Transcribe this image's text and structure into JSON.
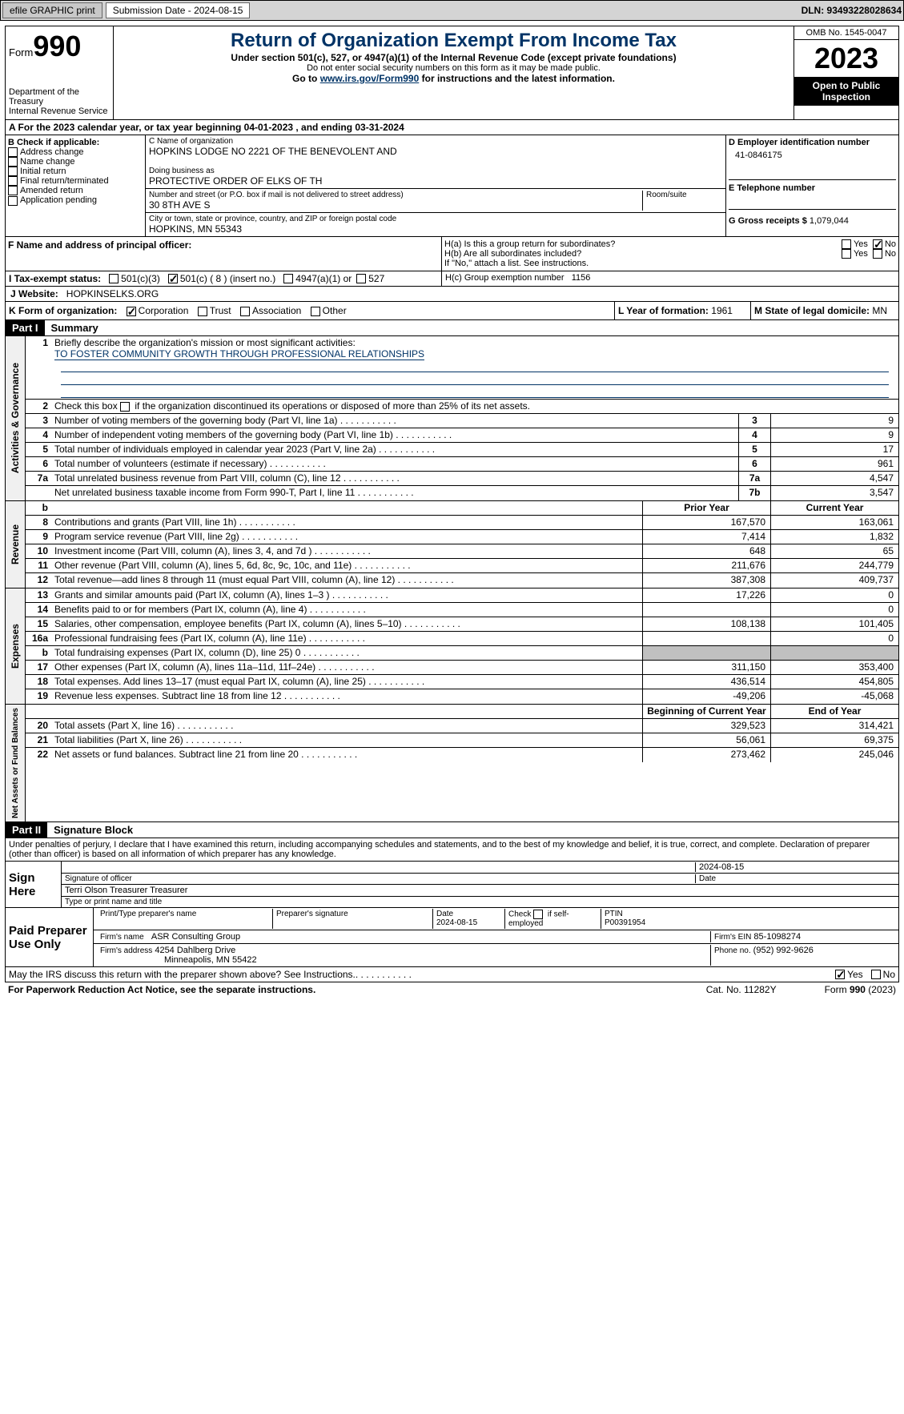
{
  "toolbar": {
    "efile": "efile GRAPHIC print",
    "submission": "Submission Date - 2024-08-15",
    "dln": "DLN: 93493228028634"
  },
  "header": {
    "form": "Form",
    "form_num": "990",
    "dept": "Department of the Treasury",
    "irs": "Internal Revenue Service",
    "title": "Return of Organization Exempt From Income Tax",
    "subtitle": "Under section 501(c), 527, or 4947(a)(1) of the Internal Revenue Code (except private foundations)",
    "ssn_warn": "Do not enter social security numbers on this form as it may be made public.",
    "goto": "Go to ",
    "url": "www.irs.gov/Form990",
    "goto2": " for instructions and the latest information.",
    "omb": "OMB No. 1545-0047",
    "year": "2023",
    "public": "Open to Public Inspection"
  },
  "period": "A For the 2023 calendar year, or tax year beginning 04-01-2023    , and ending 03-31-2024",
  "section_b": {
    "label": "B Check if applicable:",
    "items": [
      "Address change",
      "Name change",
      "Initial return",
      "Final return/terminated",
      "Amended return",
      "Application pending"
    ]
  },
  "section_c": {
    "name_label": "C Name of organization",
    "name": "HOPKINS LODGE NO 2221 OF THE BENEVOLENT AND",
    "dba_label": "Doing business as",
    "dba": "PROTECTIVE ORDER OF ELKS OF TH",
    "addr_label": "Number and street (or P.O. box if mail is not delivered to street address)",
    "room_label": "Room/suite",
    "addr": "30 8TH AVE S",
    "city_label": "City or town, state or province, country, and ZIP or foreign postal code",
    "city": "HOPKINS, MN  55343"
  },
  "section_d": {
    "label": "D Employer identification number",
    "ein": "41-0846175"
  },
  "section_e": {
    "label": "E Telephone number"
  },
  "section_g": {
    "label": "G Gross receipts $",
    "val": "1,079,044"
  },
  "section_f": {
    "label": "F  Name and address of principal officer:"
  },
  "section_h": {
    "ha": "H(a)  Is this a group return for subordinates?",
    "hb": "H(b)  Are all subordinates included?",
    "hb_note": "If \"No,\" attach a list. See instructions.",
    "hc": "H(c)  Group exemption number ",
    "hc_val": "1156",
    "yes": "Yes",
    "no": "No"
  },
  "section_i": {
    "label": "I  Tax-exempt status:",
    "opts": [
      "501(c)(3)",
      "501(c) ( 8 ) (insert no.)",
      "4947(a)(1) or",
      "527"
    ]
  },
  "section_j": {
    "label": "J  Website:",
    "val": "HOPKINSELKS.ORG"
  },
  "section_k": {
    "label": "K Form of organization:",
    "opts": [
      "Corporation",
      "Trust",
      "Association",
      "Other"
    ]
  },
  "section_l": {
    "label": "L Year of formation:",
    "val": "1961"
  },
  "section_m": {
    "label": "M State of legal domicile:",
    "val": "MN"
  },
  "part1": {
    "header": "Part I",
    "title": "Summary",
    "line1": "Briefly describe the organization's mission or most significant activities:",
    "mission": "TO FOSTER COMMUNITY GROWTH THROUGH PROFESSIONAL RELATIONSHIPS",
    "line2": "Check this box     if the organization discontinued its operations or disposed of more than 25% of its net assets.",
    "governance_label": "Activities & Governance",
    "revenue_label": "Revenue",
    "expenses_label": "Expenses",
    "netassets_label": "Net Assets or Fund Balances",
    "prior_year": "Prior Year",
    "current_year": "Current Year",
    "begin_year": "Beginning of Current Year",
    "end_year": "End of Year",
    "rows_gov": [
      {
        "n": "3",
        "desc": "Number of voting members of the governing body (Part VI, line 1a)",
        "box": "3",
        "val": "9"
      },
      {
        "n": "4",
        "desc": "Number of independent voting members of the governing body (Part VI, line 1b)",
        "box": "4",
        "val": "9"
      },
      {
        "n": "5",
        "desc": "Total number of individuals employed in calendar year 2023 (Part V, line 2a)",
        "box": "5",
        "val": "17"
      },
      {
        "n": "6",
        "desc": "Total number of volunteers (estimate if necessary)",
        "box": "6",
        "val": "961"
      },
      {
        "n": "7a",
        "desc": "Total unrelated business revenue from Part VIII, column (C), line 12",
        "box": "7a",
        "val": "4,547"
      },
      {
        "n": "",
        "desc": "Net unrelated business taxable income from Form 990-T, Part I, line 11",
        "box": "7b",
        "val": "3,547"
      }
    ],
    "rows_rev": [
      {
        "n": "8",
        "desc": "Contributions and grants (Part VIII, line 1h)",
        "prior": "167,570",
        "curr": "163,061"
      },
      {
        "n": "9",
        "desc": "Program service revenue (Part VIII, line 2g)",
        "prior": "7,414",
        "curr": "1,832"
      },
      {
        "n": "10",
        "desc": "Investment income (Part VIII, column (A), lines 3, 4, and 7d )",
        "prior": "648",
        "curr": "65"
      },
      {
        "n": "11",
        "desc": "Other revenue (Part VIII, column (A), lines 5, 6d, 8c, 9c, 10c, and 11e)",
        "prior": "211,676",
        "curr": "244,779"
      },
      {
        "n": "12",
        "desc": "Total revenue—add lines 8 through 11 (must equal Part VIII, column (A), line 12)",
        "prior": "387,308",
        "curr": "409,737"
      }
    ],
    "rows_exp": [
      {
        "n": "13",
        "desc": "Grants and similar amounts paid (Part IX, column (A), lines 1–3 )",
        "prior": "17,226",
        "curr": "0"
      },
      {
        "n": "14",
        "desc": "Benefits paid to or for members (Part IX, column (A), line 4)",
        "prior": "",
        "curr": "0"
      },
      {
        "n": "15",
        "desc": "Salaries, other compensation, employee benefits (Part IX, column (A), lines 5–10)",
        "prior": "108,138",
        "curr": "101,405"
      },
      {
        "n": "16a",
        "desc": "Professional fundraising fees (Part IX, column (A), line 11e)",
        "prior": "",
        "curr": "0"
      },
      {
        "n": "b",
        "desc": "Total fundraising expenses (Part IX, column (D), line 25) 0",
        "prior": "shaded",
        "curr": "shaded"
      },
      {
        "n": "17",
        "desc": "Other expenses (Part IX, column (A), lines 11a–11d, 11f–24e)",
        "prior": "311,150",
        "curr": "353,400"
      },
      {
        "n": "18",
        "desc": "Total expenses. Add lines 13–17 (must equal Part IX, column (A), line 25)",
        "prior": "436,514",
        "curr": "454,805"
      },
      {
        "n": "19",
        "desc": "Revenue less expenses. Subtract line 18 from line 12",
        "prior": "-49,206",
        "curr": "-45,068"
      }
    ],
    "rows_net": [
      {
        "n": "20",
        "desc": "Total assets (Part X, line 16)",
        "prior": "329,523",
        "curr": "314,421"
      },
      {
        "n": "21",
        "desc": "Total liabilities (Part X, line 26)",
        "prior": "56,061",
        "curr": "69,375"
      },
      {
        "n": "22",
        "desc": "Net assets or fund balances. Subtract line 21 from line 20",
        "prior": "273,462",
        "curr": "245,046"
      }
    ]
  },
  "part2": {
    "header": "Part II",
    "title": "Signature Block",
    "declaration": "Under penalties of perjury, I declare that I have examined this return, including accompanying schedules and statements, and to the best of my knowledge and belief, it is true, correct, and complete. Declaration of preparer (other than officer) is based on all information of which preparer has any knowledge.",
    "sign_here": "Sign Here",
    "sig_date": "2024-08-15",
    "sig_officer_label": "Signature of officer",
    "date_label": "Date",
    "officer_name": "Terri Olson Treasurer  Treasurer",
    "type_label": "Type or print name and title",
    "paid": "Paid Preparer Use Only",
    "prep_name_label": "Print/Type preparer's name",
    "prep_sig_label": "Preparer's signature",
    "prep_date_label": "Date",
    "prep_date": "2024-08-15",
    "check_self": "Check      if self-employed",
    "ptin_label": "PTIN",
    "ptin": "P00391954",
    "firm_name_label": "Firm's name",
    "firm_name": "ASR Consulting Group",
    "firm_ein_label": "Firm's EIN",
    "firm_ein": "85-1098274",
    "firm_addr_label": "Firm's address",
    "firm_addr1": "4254 Dahlberg Drive",
    "firm_addr2": "Minneapolis, MN  55422",
    "phone_label": "Phone no.",
    "phone": "(952) 992-9626",
    "discuss": "May the IRS discuss this return with the preparer shown above? See Instructions.",
    "yes": "Yes",
    "no": "No"
  },
  "footer": {
    "paperwork": "For Paperwork Reduction Act Notice, see the separate instructions.",
    "cat": "Cat. No. 11282Y",
    "form": "Form 990 (2023)"
  }
}
